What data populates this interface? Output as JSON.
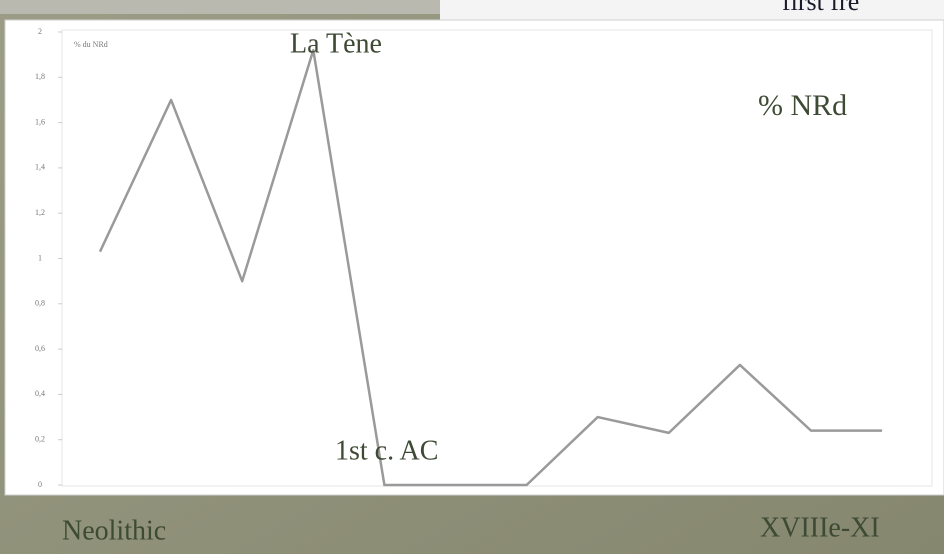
{
  "heading": "first fre",
  "chart_data": {
    "type": "line",
    "y_label": "% du NRd",
    "categories": [
      null,
      null,
      null,
      null,
      null,
      null,
      null,
      null,
      null,
      null,
      null,
      null
    ],
    "values": [
      1.03,
      1.7,
      0.9,
      1.92,
      0,
      0,
      0,
      0.3,
      0.23,
      0.53,
      0.24,
      0.24
    ],
    "color": "#9a9a9a",
    "ylim": [
      0,
      2
    ],
    "yticks": [
      0,
      {
        "value": 0.2,
        "label": "0,2"
      },
      {
        "value": 0.4,
        "label": "0,4"
      },
      {
        "value": 0.6,
        "label": "0,6"
      },
      {
        "value": 0.8,
        "label": "0,8"
      },
      1,
      {
        "value": 1.2,
        "label": "1,2"
      },
      {
        "value": 1.4,
        "label": "1,4"
      },
      {
        "value": 1.6,
        "label": "1,6"
      },
      {
        "value": 1.8,
        "label": "1,8"
      },
      2
    ],
    "grid": false,
    "annotations": [
      "La Tène",
      "% NRd",
      "1st c. AC",
      "Neolithic",
      "XVIIIe-XI"
    ]
  }
}
